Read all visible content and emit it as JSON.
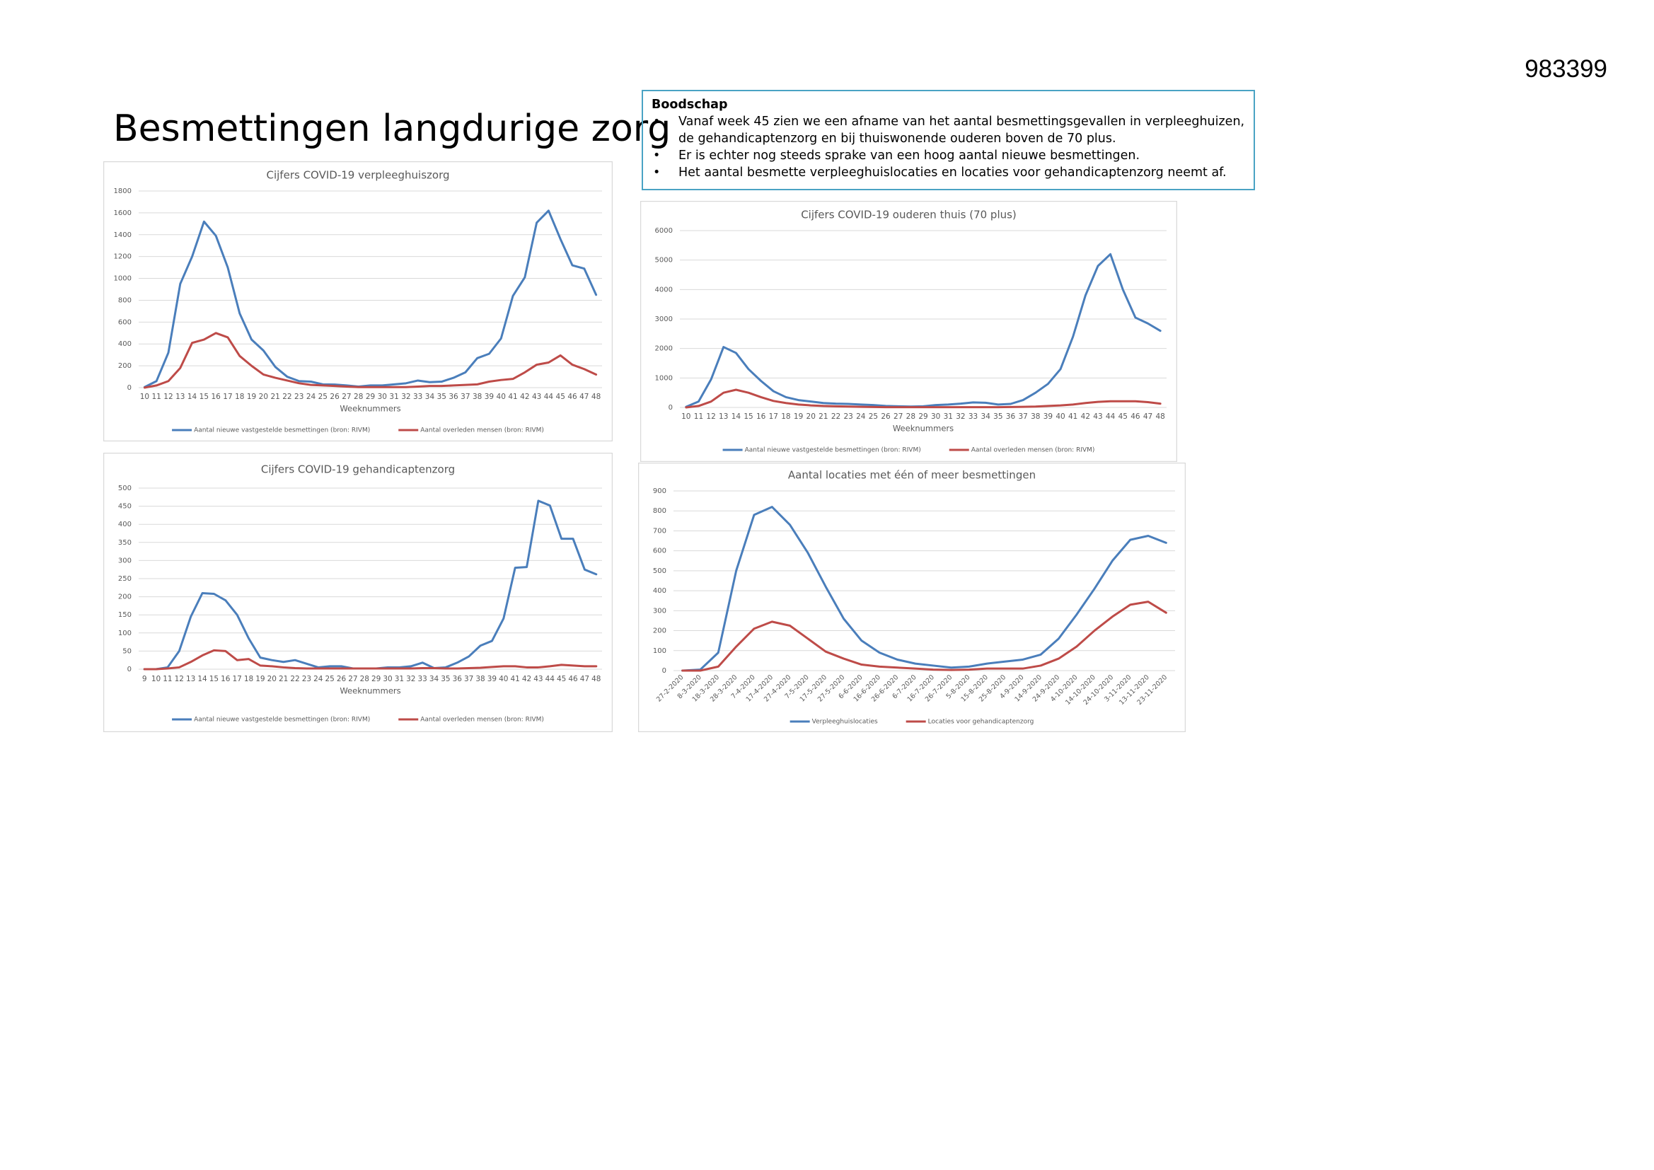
{
  "page_number": "983399",
  "title": "Besmettingen langdurige zorg",
  "message": {
    "heading": "Boodschap",
    "bullets": [
      "Vanaf week 45 zien we een afname van het aantal besmettingsgevallen in verpleeghuizen, de gehandicaptenzorg en bij thuiswonende ouderen boven de 70 plus.",
      "Er is echter nog steeds sprake van een hoog aantal nieuwe besmettingen.",
      "Het aantal besmette verpleeghuislocaties en locaties voor gehandicaptenzorg neemt af."
    ]
  },
  "chart_data": [
    {
      "type": "line",
      "title": "Cijfers COVID-19 verpleeghuiszorg",
      "x_label": "Weeknummers",
      "categories": [
        10,
        11,
        12,
        13,
        14,
        15,
        16,
        17,
        18,
        19,
        20,
        21,
        22,
        23,
        24,
        25,
        26,
        27,
        28,
        29,
        30,
        31,
        32,
        33,
        34,
        35,
        36,
        37,
        38,
        39,
        40,
        41,
        42,
        43,
        44,
        45,
        46,
        47,
        48
      ],
      "series": [
        {
          "name": "Aantal nieuwe vastgestelde besmettingen  (bron: RIVM)",
          "color": "#4a7ebb",
          "values": [
            5,
            60,
            320,
            950,
            1200,
            1520,
            1390,
            1100,
            680,
            440,
            340,
            190,
            100,
            60,
            55,
            30,
            28,
            20,
            10,
            20,
            20,
            30,
            40,
            65,
            50,
            55,
            90,
            140,
            270,
            310,
            450,
            840,
            1010,
            1510,
            1620,
            1360,
            1120,
            1090,
            850
          ]
        },
        {
          "name": "Aantal overleden mensen (bron: RIVM)",
          "color": "#be4b48",
          "values": [
            0,
            20,
            60,
            180,
            410,
            440,
            500,
            460,
            290,
            200,
            120,
            90,
            65,
            40,
            25,
            20,
            15,
            10,
            5,
            5,
            5,
            5,
            5,
            10,
            15,
            15,
            20,
            25,
            30,
            55,
            70,
            80,
            140,
            210,
            230,
            295,
            210,
            170,
            120
          ]
        }
      ],
      "ylim": [
        0,
        1800
      ],
      "yticks": [
        0,
        200,
        400,
        600,
        800,
        1000,
        1200,
        1400,
        1600,
        1800
      ],
      "grid": true
    },
    {
      "type": "line",
      "title": "Cijfers COVID-19 ouderen thuis (70 plus)",
      "x_label": "Weeknummers",
      "categories": [
        10,
        11,
        12,
        13,
        14,
        15,
        16,
        17,
        18,
        19,
        20,
        21,
        22,
        23,
        24,
        25,
        26,
        27,
        28,
        29,
        30,
        31,
        32,
        33,
        34,
        35,
        36,
        37,
        38,
        39,
        40,
        41,
        42,
        43,
        44,
        45,
        46,
        47,
        48
      ],
      "series": [
        {
          "name": "Aantal nieuwe vastgestelde besmettingen  (bron: RIVM)",
          "color": "#4a7ebb",
          "values": [
            20,
            200,
            950,
            2050,
            1850,
            1300,
            900,
            550,
            350,
            250,
            200,
            150,
            130,
            120,
            100,
            80,
            50,
            40,
            30,
            40,
            80,
            100,
            130,
            170,
            160,
            100,
            120,
            250,
            500,
            800,
            1300,
            2400,
            3800,
            4800,
            5200,
            4000,
            3050,
            2850,
            2600
          ]
        },
        {
          "name": "Aantal overleden mensen (bron: RIVM)",
          "color": "#be4b48",
          "values": [
            0,
            50,
            200,
            500,
            600,
            500,
            350,
            220,
            150,
            100,
            70,
            50,
            40,
            30,
            20,
            15,
            10,
            10,
            10,
            10,
            10,
            10,
            10,
            10,
            10,
            10,
            15,
            20,
            30,
            50,
            70,
            100,
            150,
            190,
            210,
            210,
            210,
            180,
            130
          ]
        }
      ],
      "ylim": [
        0,
        6000
      ],
      "yticks": [
        0,
        1000,
        2000,
        3000,
        4000,
        5000,
        6000
      ],
      "grid": true
    },
    {
      "type": "line",
      "title": "Cijfers COVID-19 gehandicaptenzorg",
      "x_label": "Weeknummers",
      "categories": [
        9,
        10,
        11,
        12,
        13,
        14,
        15,
        16,
        17,
        18,
        19,
        20,
        21,
        22,
        23,
        24,
        25,
        26,
        27,
        28,
        29,
        30,
        31,
        32,
        33,
        34,
        35,
        36,
        37,
        38,
        39,
        40,
        41,
        42,
        43,
        44,
        45,
        46,
        47,
        48
      ],
      "series": [
        {
          "name": "Aantal nieuwe vastgestelde besmettingen  (bron: RIVM)",
          "color": "#4a7ebb",
          "values": [
            0,
            0,
            5,
            50,
            145,
            210,
            208,
            190,
            150,
            85,
            32,
            25,
            20,
            25,
            15,
            5,
            8,
            8,
            2,
            2,
            2,
            5,
            5,
            8,
            18,
            3,
            5,
            18,
            35,
            65,
            78,
            140,
            280,
            282,
            465,
            452,
            360,
            360,
            275,
            262
          ]
        },
        {
          "name": "Aantal overleden mensen  (bron: RIVM)",
          "color": "#be4b48",
          "values": [
            0,
            0,
            2,
            5,
            20,
            38,
            52,
            50,
            25,
            28,
            10,
            8,
            5,
            3,
            2,
            2,
            2,
            2,
            2,
            2,
            2,
            2,
            2,
            2,
            3,
            3,
            2,
            2,
            3,
            4,
            6,
            8,
            8,
            5,
            5,
            8,
            12,
            10,
            8,
            8
          ]
        }
      ],
      "ylim": [
        0,
        500
      ],
      "yticks": [
        0,
        50,
        100,
        150,
        200,
        250,
        300,
        350,
        400,
        450,
        500
      ],
      "grid": true
    },
    {
      "type": "line",
      "title": "Aantal locaties met één of meer besmettingen",
      "categories": [
        "27-2-2020",
        "8-3-2020",
        "18-3-2020",
        "28-3-2020",
        "7-4-2020",
        "17-4-2020",
        "27-4-2020",
        "7-5-2020",
        "17-5-2020",
        "27-5-2020",
        "6-6-2020",
        "16-6-2020",
        "26-6-2020",
        "6-7-2020",
        "16-7-2020",
        "26-7-2020",
        "5-8-2020",
        "15-8-2020",
        "25-8-2020",
        "4-9-2020",
        "14-9-2020",
        "24-9-2020",
        "4-10-2020",
        "14-10-2020",
        "24-10-2020",
        "3-11-2020",
        "13-11-2020",
        "23-11-2020"
      ],
      "series": [
        {
          "name": "Verpleeghuislocaties",
          "color": "#4a7ebb",
          "values": [
            0,
            5,
            90,
            500,
            780,
            820,
            730,
            590,
            420,
            260,
            150,
            90,
            55,
            35,
            25,
            15,
            20,
            35,
            45,
            55,
            80,
            160,
            280,
            410,
            550,
            655,
            675,
            640
          ]
        },
        {
          "name": "Locaties voor gehandicaptenzorg",
          "color": "#be4b48",
          "values": [
            0,
            0,
            20,
            120,
            210,
            245,
            225,
            160,
            95,
            60,
            30,
            20,
            15,
            10,
            5,
            3,
            5,
            10,
            10,
            10,
            25,
            60,
            120,
            200,
            270,
            330,
            345,
            290
          ]
        }
      ],
      "ylim": [
        0,
        900
      ],
      "yticks": [
        0,
        100,
        200,
        300,
        400,
        500,
        600,
        700,
        800,
        900
      ],
      "grid": true,
      "rotate_x_labels": true
    }
  ]
}
